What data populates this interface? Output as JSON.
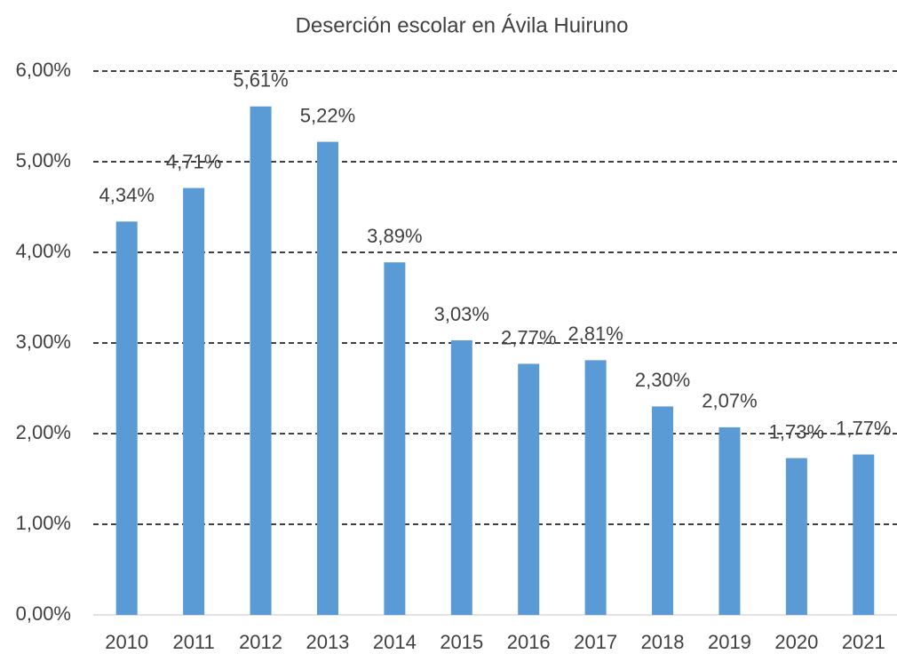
{
  "chart_data": {
    "type": "bar",
    "title": "Deserción escolar en Ávila Huiruno",
    "categories": [
      "2010",
      "2011",
      "2012",
      "2013",
      "2014",
      "2015",
      "2016",
      "2017",
      "2018",
      "2019",
      "2020",
      "2021"
    ],
    "values": [
      4.34,
      4.71,
      5.61,
      5.22,
      3.89,
      3.03,
      2.77,
      2.81,
      2.3,
      2.07,
      1.73,
      1.77
    ],
    "value_labels": [
      "4,34%",
      "4,71%",
      "5,61%",
      "5,22%",
      "3,89%",
      "3,03%",
      "2,77%",
      "2,81%",
      "2,30%",
      "2,07%",
      "1,73%",
      "1,77%"
    ],
    "color": "#5b9bd5",
    "ylim": [
      0,
      6
    ],
    "yticks": [
      {
        "value": 0,
        "label": "0,00%"
      },
      {
        "value": 1,
        "label": "1,00%"
      },
      {
        "value": 2,
        "label": "2,00%"
      },
      {
        "value": 3,
        "label": "3,00%"
      },
      {
        "value": 4,
        "label": "4,00%"
      },
      {
        "value": 5,
        "label": "5,00%"
      },
      {
        "value": 6,
        "label": "6,00%"
      }
    ],
    "grid": true
  }
}
